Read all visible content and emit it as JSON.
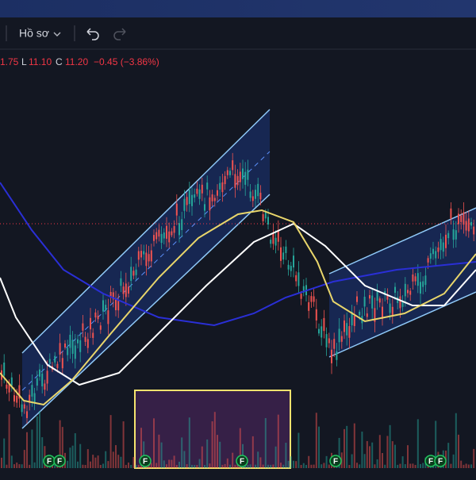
{
  "toolbar": {
    "profile": "Hồ sơ"
  },
  "legend": {
    "high_value": "1.75",
    "low_letter": "L",
    "low_value": "11.10",
    "close_letter": "C",
    "close_value": "11.20",
    "change": "−0.45 (−3.86%)"
  },
  "events": [
    {
      "label": "F"
    },
    {
      "label": "F"
    },
    {
      "label": "F"
    },
    {
      "label": "F"
    },
    {
      "label": "F"
    },
    {
      "label": "F"
    },
    {
      "label": "F"
    }
  ]
}
